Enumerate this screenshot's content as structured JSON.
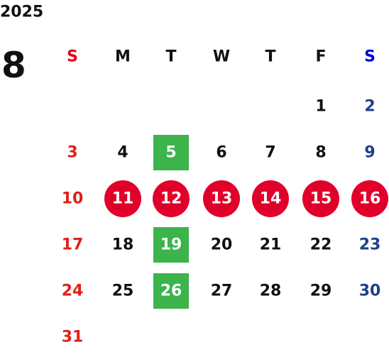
{
  "year": "2025",
  "month": "8",
  "weekdays": [
    "S",
    "M",
    "T",
    "W",
    "T",
    "F",
    "S"
  ],
  "weeks": [
    [
      null,
      null,
      null,
      null,
      null,
      "1",
      "2"
    ],
    [
      "3",
      "4",
      {
        "label": "5",
        "mark": "square"
      },
      "6",
      "7",
      "8",
      "9"
    ],
    [
      "10",
      {
        "label": "11",
        "mark": "circle"
      },
      {
        "label": "12",
        "mark": "circle"
      },
      {
        "label": "13",
        "mark": "circle"
      },
      {
        "label": "14",
        "mark": "circle"
      },
      {
        "label": "15",
        "mark": "circle"
      },
      {
        "label": "16",
        "mark": "circle"
      }
    ],
    [
      "17",
      "18",
      {
        "label": "19",
        "mark": "square"
      },
      "20",
      "21",
      "22",
      "23"
    ],
    [
      "24",
      "25",
      {
        "label": "26",
        "mark": "square"
      },
      "27",
      "28",
      "29",
      "30"
    ],
    [
      "31",
      null,
      null,
      null,
      null,
      null,
      null
    ]
  ],
  "colors": {
    "sunday": "#e0201c",
    "saturday": "#1f3f8f",
    "sunday_header": "#e60012",
    "saturday_header": "#0000e6",
    "weekday": "#111111",
    "square": "#3cb44b",
    "circle": "#e0002a",
    "marked_text": "#ffffff"
  }
}
